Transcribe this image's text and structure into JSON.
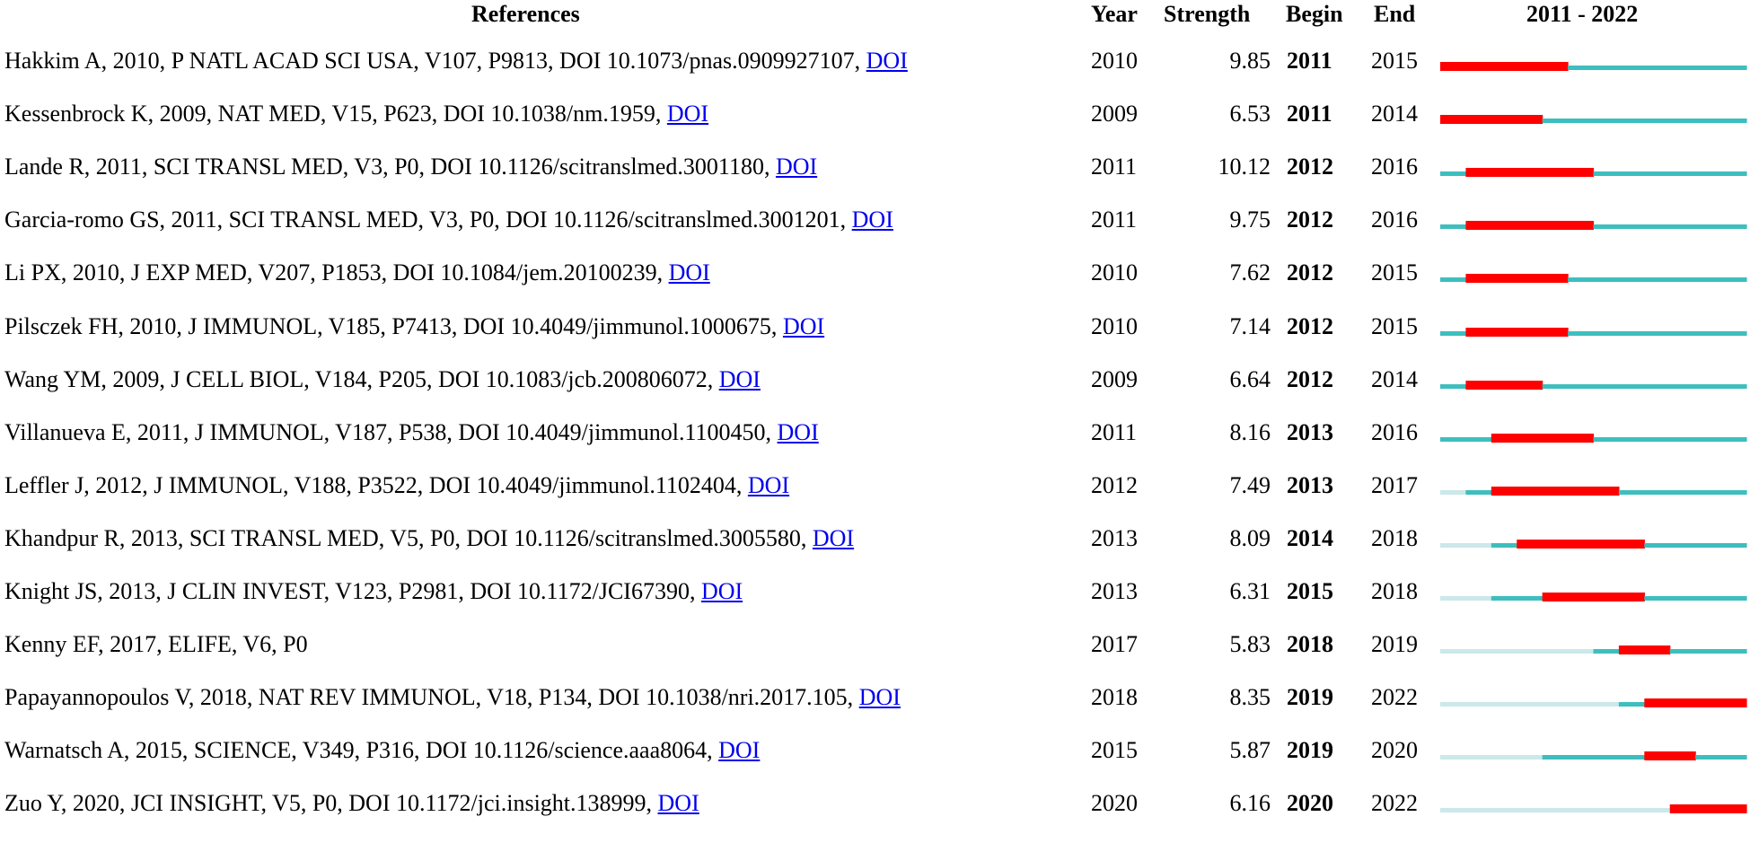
{
  "headers": {
    "references": "References",
    "year": "Year",
    "strength": "Strength",
    "begin": "Begin",
    "end": "End",
    "range": "2011 - 2022"
  },
  "colors": {
    "burst": "#ff0000",
    "active": "#3ebebe",
    "inactive": "#cbe8ea"
  },
  "chart_data": {
    "type": "table",
    "timeline": {
      "start": 2011,
      "end": 2022
    },
    "rows": [
      {
        "ref": "Hakkim A, 2010, P NATL ACAD SCI USA, V107, P9813, DOI 10.1073/pnas.0909927107,",
        "doi": "DOI",
        "year": "2010",
        "strength": "9.85",
        "begin": "2011",
        "end": "2015"
      },
      {
        "ref": "Kessenbrock K, 2009, NAT MED, V15, P623, DOI 10.1038/nm.1959,",
        "doi": "DOI",
        "year": "2009",
        "strength": "6.53",
        "begin": "2011",
        "end": "2014"
      },
      {
        "ref": "Lande R, 2011, SCI TRANSL MED, V3, P0, DOI 10.1126/scitranslmed.3001180,",
        "doi": "DOI",
        "year": "2011",
        "strength": "10.12",
        "begin": "2012",
        "end": "2016"
      },
      {
        "ref": "Garcia-romo GS, 2011, SCI TRANSL MED, V3, P0, DOI 10.1126/scitranslmed.3001201,",
        "doi": "DOI",
        "year": "2011",
        "strength": "9.75",
        "begin": "2012",
        "end": "2016"
      },
      {
        "ref": "Li PX, 2010, J EXP MED, V207, P1853, DOI 10.1084/jem.20100239,",
        "doi": "DOI",
        "year": "2010",
        "strength": "7.62",
        "begin": "2012",
        "end": "2015"
      },
      {
        "ref": "Pilsczek FH, 2010, J IMMUNOL, V185, P7413, DOI 10.4049/jimmunol.1000675,",
        "doi": "DOI",
        "year": "2010",
        "strength": "7.14",
        "begin": "2012",
        "end": "2015"
      },
      {
        "ref": "Wang YM, 2009, J CELL BIOL, V184, P205, DOI 10.1083/jcb.200806072,",
        "doi": "DOI",
        "year": "2009",
        "strength": "6.64",
        "begin": "2012",
        "end": "2014"
      },
      {
        "ref": "Villanueva E, 2011, J IMMUNOL, V187, P538, DOI 10.4049/jimmunol.1100450,",
        "doi": "DOI",
        "year": "2011",
        "strength": "8.16",
        "begin": "2013",
        "end": "2016"
      },
      {
        "ref": "Leffler J, 2012, J IMMUNOL, V188, P3522, DOI 10.4049/jimmunol.1102404,",
        "doi": "DOI",
        "year": "2012",
        "strength": "7.49",
        "begin": "2013",
        "end": "2017"
      },
      {
        "ref": "Khandpur R, 2013, SCI TRANSL MED, V5, P0, DOI 10.1126/scitranslmed.3005580,",
        "doi": "DOI",
        "year": "2013",
        "strength": "8.09",
        "begin": "2014",
        "end": "2018"
      },
      {
        "ref": "Knight JS, 2013, J CLIN INVEST, V123, P2981, DOI 10.1172/JCI67390,",
        "doi": "DOI",
        "year": "2013",
        "strength": "6.31",
        "begin": "2015",
        "end": "2018"
      },
      {
        "ref": "Kenny EF, 2017, ELIFE, V6, P0",
        "doi": "",
        "year": "2017",
        "strength": "5.83",
        "begin": "2018",
        "end": "2019"
      },
      {
        "ref": "Papayannopoulos V, 2018, NAT REV IMMUNOL, V18, P134, DOI 10.1038/nri.2017.105,",
        "doi": "DOI",
        "year": "2018",
        "strength": "8.35",
        "begin": "2019",
        "end": "2022"
      },
      {
        "ref": "Warnatsch A, 2015, SCIENCE, V349, P316, DOI 10.1126/science.aaa8064,",
        "doi": "DOI",
        "year": "2015",
        "strength": "5.87",
        "begin": "2019",
        "end": "2020"
      },
      {
        "ref": "Zuo Y, 2020, JCI INSIGHT, V5, P0, DOI 10.1172/jci.insight.138999,",
        "doi": "DOI",
        "year": "2020",
        "strength": "6.16",
        "begin": "2020",
        "end": "2022"
      }
    ]
  }
}
